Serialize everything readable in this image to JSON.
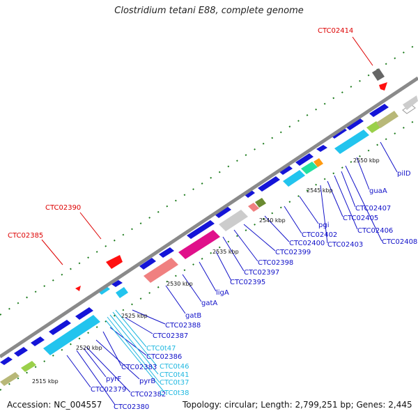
{
  "title": "Clostridium tetani E88, complete genome",
  "footer": {
    "accession": "Accession: NC_004557",
    "topology": "Topology: circular; Length: 2,799,251 bp; Genes: 2,445"
  },
  "colors": {
    "backbone": "#8a8a8a",
    "forward_gene": "#1414d8",
    "cyan_gene": "#22c4ee",
    "rna_label": "#20b8e0",
    "highlight_label": "#dd0000",
    "tick": "#1a7a1a"
  },
  "scale_ticks": [
    "2515 kbp",
    "2520 kbp",
    "2525 kbp",
    "2530 kbp",
    "2535 kbp",
    "2540 kbp",
    "2545 kbp",
    "2550 kbp"
  ],
  "highlighted_genes": [
    "CTC02414",
    "CTC02390",
    "CTC02385"
  ],
  "gene_labels": [
    {
      "text": "CTC02379",
      "kind": "blue"
    },
    {
      "text": "CTC02380",
      "kind": "blue"
    },
    {
      "text": "pyrF",
      "kind": "blue"
    },
    {
      "text": "CTC02382",
      "kind": "blue"
    },
    {
      "text": "pyrB",
      "kind": "blue"
    },
    {
      "text": "CTC02383",
      "kind": "blue"
    },
    {
      "text": "CTC02386",
      "kind": "blue"
    },
    {
      "text": "CTC02387",
      "kind": "blue"
    },
    {
      "text": "CTC02388",
      "kind": "blue"
    },
    {
      "text": "gatB",
      "kind": "blue"
    },
    {
      "text": "gatA",
      "kind": "blue"
    },
    {
      "text": "ligA",
      "kind": "blue"
    },
    {
      "text": "CTC02395",
      "kind": "blue"
    },
    {
      "text": "CTC02397",
      "kind": "blue"
    },
    {
      "text": "CTC02398",
      "kind": "blue"
    },
    {
      "text": "CTC02399",
      "kind": "blue"
    },
    {
      "text": "CTC02400",
      "kind": "blue"
    },
    {
      "text": "CTC02402",
      "kind": "blue"
    },
    {
      "text": "pgi",
      "kind": "blue"
    },
    {
      "text": "CTC02403",
      "kind": "blue"
    },
    {
      "text": "CTC02405",
      "kind": "blue"
    },
    {
      "text": "CTC02406",
      "kind": "blue"
    },
    {
      "text": "CTC02407",
      "kind": "blue"
    },
    {
      "text": "CTC02408",
      "kind": "blue"
    },
    {
      "text": "guaA",
      "kind": "blue"
    },
    {
      "text": "pilD",
      "kind": "blue"
    },
    {
      "text": "CTC0t47",
      "kind": "cyan"
    },
    {
      "text": "CTC0t46",
      "kind": "cyan"
    },
    {
      "text": "CTC0t41",
      "kind": "cyan"
    },
    {
      "text": "CTC0t37",
      "kind": "cyan"
    },
    {
      "text": "CTC0t38",
      "kind": "cyan"
    }
  ]
}
